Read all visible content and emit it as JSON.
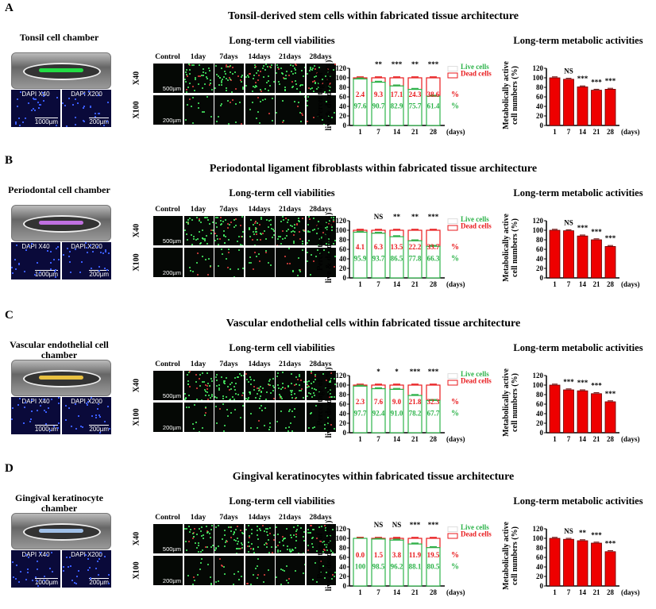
{
  "common": {
    "viability_title": "Long-term cell viabilities",
    "metabolic_title": "Long-term metabolic activities",
    "columns": [
      "Control",
      "1day",
      "7days",
      "14days",
      "21days",
      "28days"
    ],
    "rows": [
      "X40",
      "X100"
    ],
    "row_scales": [
      "500µm",
      "200µm"
    ],
    "dapi_labels": [
      "DAPI X40",
      "DAPI X200"
    ],
    "dapi_scales": [
      "1000µm",
      "200µm"
    ],
    "viability_ylabel": [
      "Percentage of",
      "live & dead cells (%)"
    ],
    "metabolic_ylabel": [
      "Metabolically active",
      "cell numbers (%)"
    ],
    "xunit": "(days)",
    "legend": [
      "Live cells",
      "Dead cells"
    ],
    "percent": "%",
    "colors": {
      "live": "#2db34a",
      "dead": "#e8191c",
      "bar": "#ee0000"
    }
  },
  "panels": [
    {
      "letter": "A",
      "title": "Tonsil-derived stem cells within fabricated tissue architecture",
      "chamber_label": "Tonsil cell chamber",
      "lane_color": "#22dd44"
    },
    {
      "letter": "B",
      "title": "Periodontal ligament fibroblasts within fabricated tissue architecture",
      "chamber_label": "Periodontal cell chamber",
      "lane_color": "#c070e0"
    },
    {
      "letter": "C",
      "title": "Vascular endothelial cells within fabricated tissue architecture",
      "chamber_label": "Vascular endothelial cell chamber",
      "lane_color": "#e8c040"
    },
    {
      "letter": "D",
      "title": "Gingival keratinocytes within fabricated tissue architecture",
      "chamber_label": "Gingival keratinocyte chamber",
      "lane_color": "#a0c0e8"
    }
  ],
  "chart_data": [
    {
      "panel": "A",
      "type": "bar",
      "stacked": true,
      "categories": [
        "1",
        "7",
        "14",
        "21",
        "28"
      ],
      "ylim": [
        0,
        120
      ],
      "xlabel": "(days)",
      "ylabel": "Percentage of live & dead cells (%)",
      "series": [
        {
          "name": "Live cells",
          "values": [
            97.6,
            90.7,
            82.9,
            75.7,
            61.4
          ]
        },
        {
          "name": "Dead cells",
          "values": [
            2.4,
            9.3,
            17.1,
            24.3,
            38.6
          ]
        }
      ],
      "significance": [
        "",
        "**",
        "***",
        "**",
        "***"
      ],
      "legend": "right"
    },
    {
      "panel": "A",
      "type": "bar",
      "categories": [
        "1",
        "7",
        "14",
        "21",
        "28"
      ],
      "ylim": [
        0,
        120
      ],
      "xlabel": "(days)",
      "ylabel": "Metabolically active cell numbers (%)",
      "values": [
        100,
        97,
        81,
        74,
        76
      ],
      "significance": [
        "",
        "NS",
        "***",
        "***",
        "***"
      ]
    },
    {
      "panel": "B",
      "type": "bar",
      "stacked": true,
      "categories": [
        "1",
        "7",
        "14",
        "21",
        "28"
      ],
      "ylim": [
        0,
        120
      ],
      "xlabel": "(days)",
      "ylabel": "Percentage of live & dead cells (%)",
      "series": [
        {
          "name": "Live cells",
          "values": [
            95.9,
            93.7,
            86.5,
            77.8,
            66.3
          ]
        },
        {
          "name": "Dead cells",
          "values": [
            4.1,
            6.3,
            13.5,
            22.2,
            33.7
          ]
        }
      ],
      "significance": [
        "",
        "NS",
        "**",
        "**",
        "***"
      ],
      "legend": "right"
    },
    {
      "panel": "B",
      "type": "bar",
      "categories": [
        "1",
        "7",
        "14",
        "21",
        "28"
      ],
      "ylim": [
        0,
        120
      ],
      "xlabel": "(days)",
      "ylabel": "Metabolically active cell numbers (%)",
      "values": [
        100,
        99,
        88,
        80,
        66
      ],
      "significance": [
        "",
        "NS",
        "***",
        "***",
        "***"
      ]
    },
    {
      "panel": "C",
      "type": "bar",
      "stacked": true,
      "categories": [
        "1",
        "7",
        "14",
        "21",
        "28"
      ],
      "ylim": [
        0,
        120
      ],
      "xlabel": "(days)",
      "ylabel": "Percentage of live & dead cells (%)",
      "series": [
        {
          "name": "Live cells",
          "values": [
            97.7,
            92.4,
            91.0,
            78.2,
            67.7
          ]
        },
        {
          "name": "Dead cells",
          "values": [
            2.3,
            7.6,
            9.0,
            21.8,
            32.3
          ]
        }
      ],
      "significance": [
        "",
        "*",
        "*",
        "***",
        "***"
      ],
      "legend": "right"
    },
    {
      "panel": "C",
      "type": "bar",
      "categories": [
        "1",
        "7",
        "14",
        "21",
        "28"
      ],
      "ylim": [
        0,
        120
      ],
      "xlabel": "(days)",
      "ylabel": "Metabolically active cell numbers (%)",
      "values": [
        100,
        90,
        88,
        82,
        65
      ],
      "significance": [
        "",
        "***",
        "***",
        "***",
        "***"
      ]
    },
    {
      "panel": "D",
      "type": "bar",
      "stacked": true,
      "categories": [
        "1",
        "7",
        "14",
        "21",
        "28"
      ],
      "ylim": [
        0,
        120
      ],
      "xlabel": "(days)",
      "ylabel": "Percentage of live & dead cells (%)",
      "series": [
        {
          "name": "Live cells",
          "values": [
            100,
            98.5,
            96.2,
            88.1,
            80.5
          ]
        },
        {
          "name": "Dead cells",
          "values": [
            0.0,
            1.5,
            3.8,
            11.9,
            19.5
          ]
        }
      ],
      "live_labels": [
        "100",
        "98.5",
        "96.2",
        "88.1",
        "80.5"
      ],
      "significance": [
        "",
        "NS",
        "NS",
        "***",
        "***"
      ],
      "legend": "right"
    },
    {
      "panel": "D",
      "type": "bar",
      "categories": [
        "1",
        "7",
        "14",
        "21",
        "28"
      ],
      "ylim": [
        0,
        120
      ],
      "xlabel": "(days)",
      "ylabel": "Metabolically active cell numbers (%)",
      "values": [
        100,
        98,
        95,
        90,
        72
      ],
      "significance": [
        "",
        "NS",
        "**",
        "***",
        "***"
      ]
    }
  ]
}
